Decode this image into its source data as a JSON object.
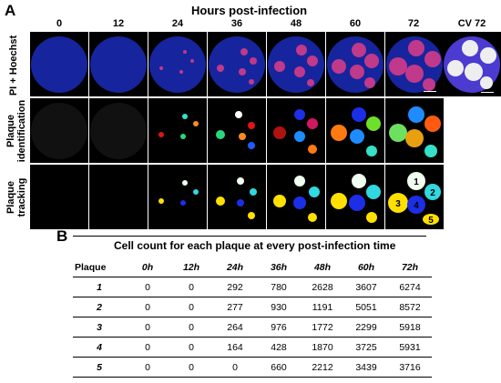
{
  "panel_a": {
    "letter": "A",
    "title": "Hours post-infection",
    "columns": [
      "0",
      "12",
      "24",
      "36",
      "48",
      "60",
      "72",
      "CV 72"
    ],
    "row_labels": [
      "PI + Hoechst",
      "Plaque identification",
      "Plaque tracking"
    ],
    "plaque_labels": [
      "1",
      "2",
      "3",
      "4",
      "5"
    ],
    "colors": {
      "hoechst_blue": "#1a2bb8",
      "plaque_red": "#c0398a",
      "cv_purple": "#4b3bd0"
    }
  },
  "panel_b": {
    "letter": "B",
    "title": "Cell count for each plaque at every post-infection time",
    "columns": [
      "Plaque",
      "0h",
      "12h",
      "24h",
      "36h",
      "48h",
      "60h",
      "72h"
    ],
    "rows": [
      [
        "1",
        "0",
        "0",
        "292",
        "780",
        "2628",
        "3607",
        "6274"
      ],
      [
        "2",
        "0",
        "0",
        "277",
        "930",
        "1191",
        "5051",
        "8572"
      ],
      [
        "3",
        "0",
        "0",
        "264",
        "976",
        "1772",
        "2299",
        "5918"
      ],
      [
        "4",
        "0",
        "0",
        "164",
        "428",
        "1870",
        "3725",
        "5931"
      ],
      [
        "5",
        "0",
        "0",
        "0",
        "660",
        "2212",
        "3439",
        "3716"
      ]
    ]
  }
}
